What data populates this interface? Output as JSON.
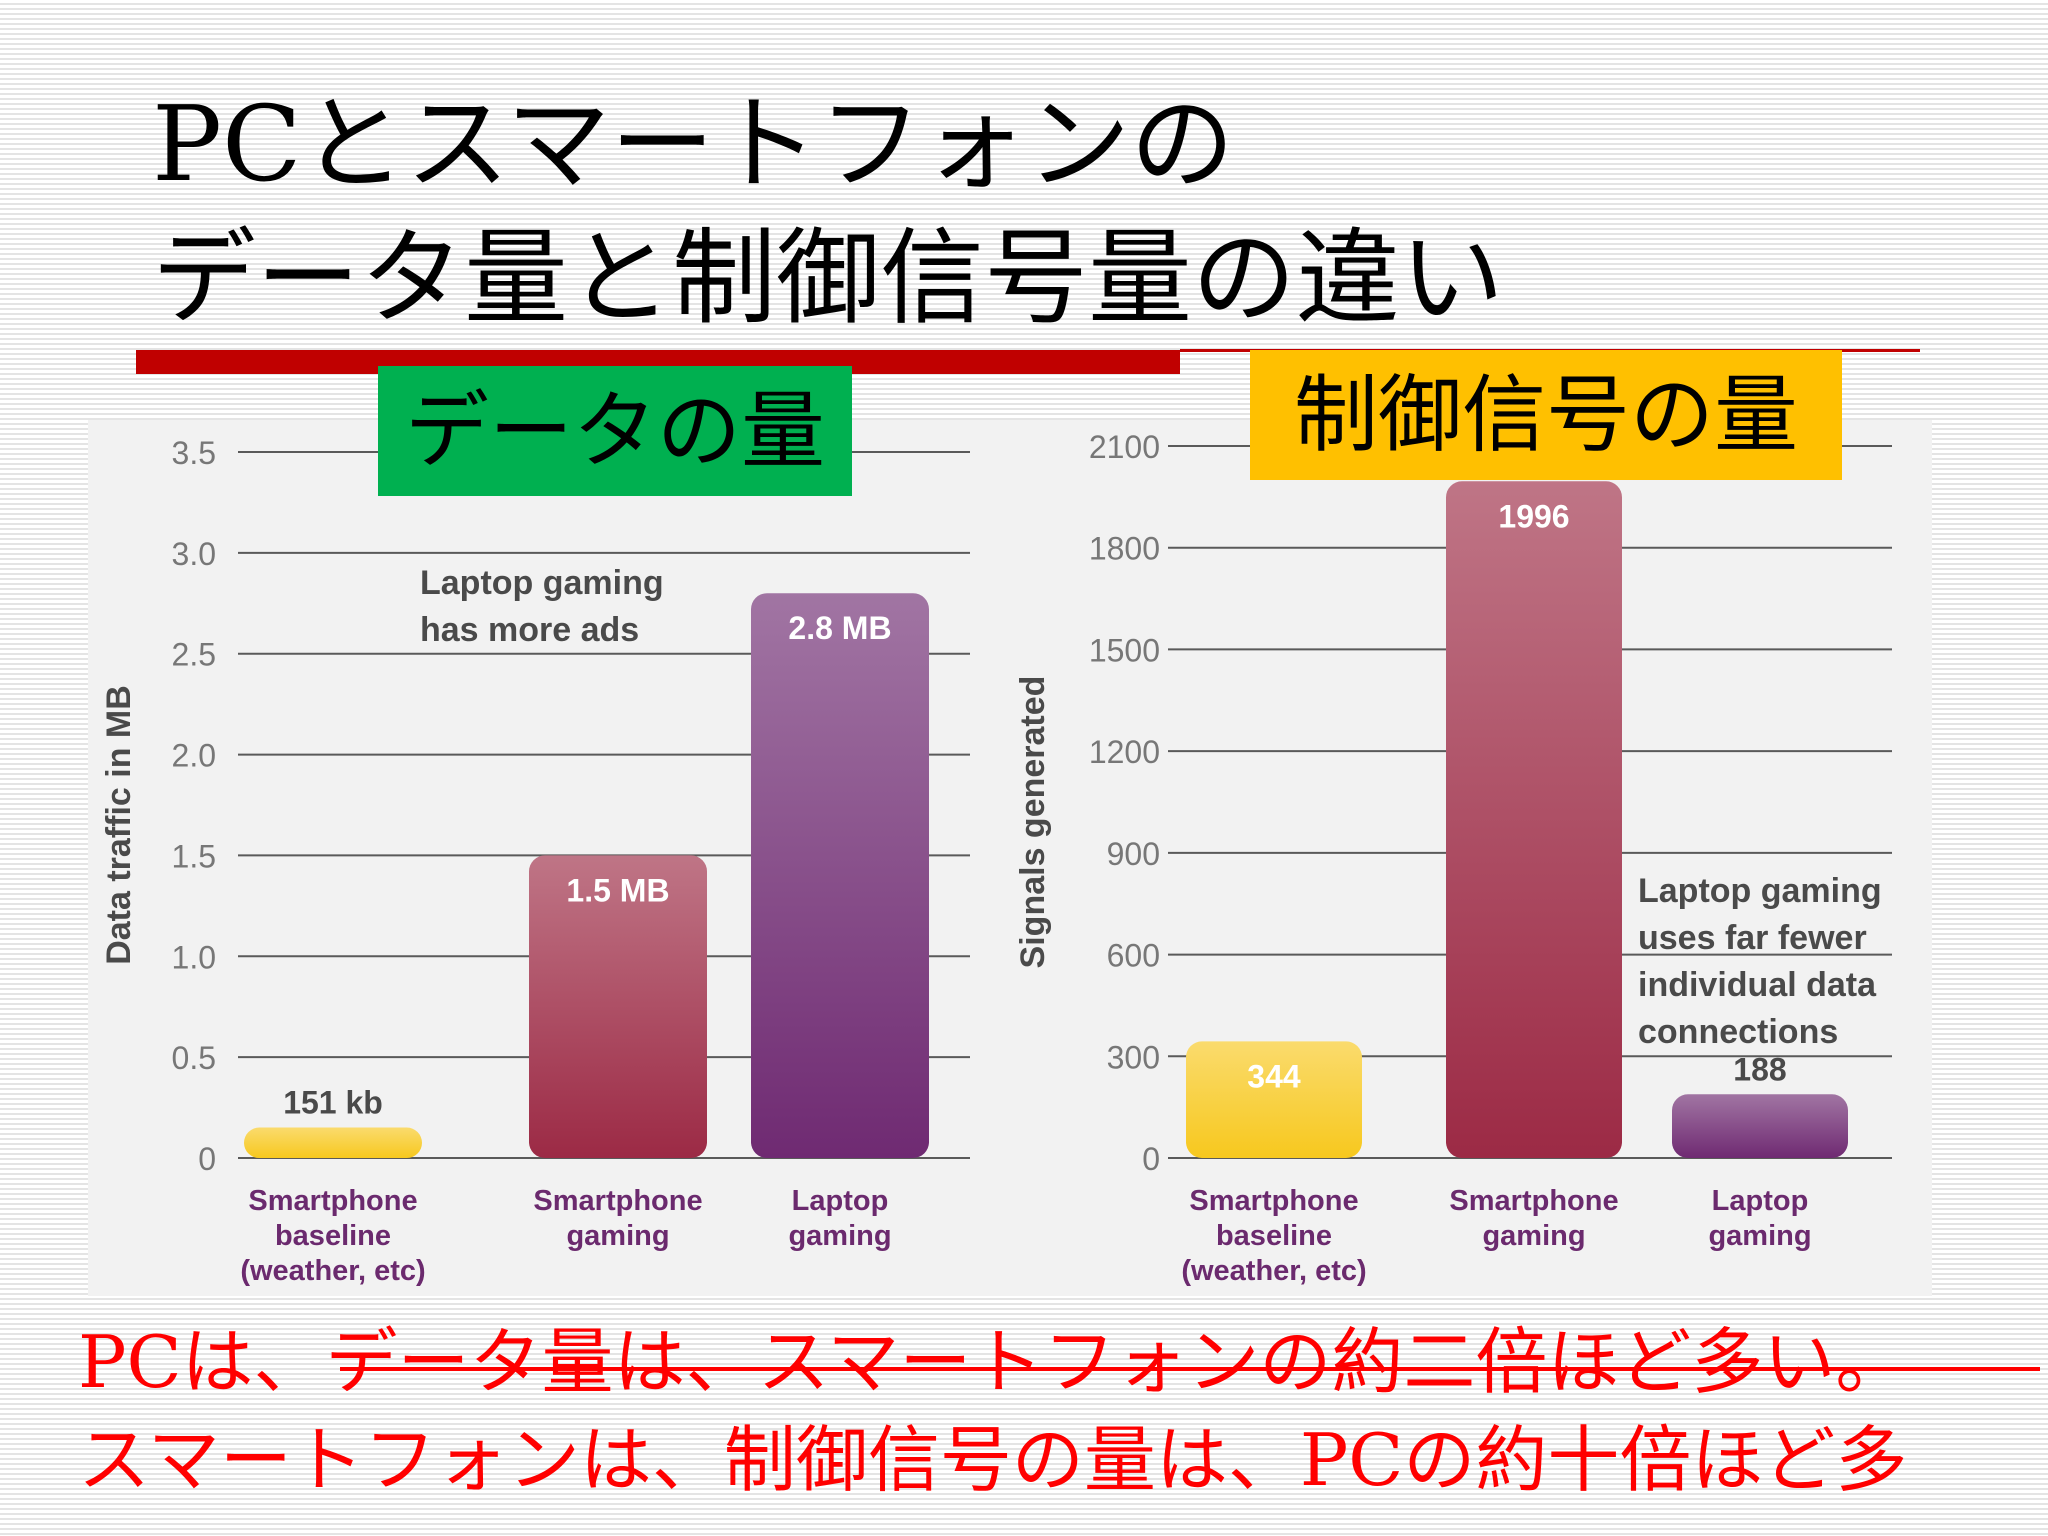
{
  "slide": {
    "title_line_1": "PCとスマートフォンの",
    "title_line_2": "データ量と制御信号量の違い",
    "accent_color": "#c00000",
    "label_data_amount": "データの量",
    "label_data_amount_color": "#00b050",
    "label_control_signal": "制御信号の量",
    "label_control_signal_color": "#ffc000",
    "footer_line_1": "PCは、データ量は、スマートフォンの約二倍ほど多い。",
    "footer_line_2": "スマートフォンは、制御信号の量は、PCの約十倍ほど多",
    "footer_color": "#ff0000"
  },
  "chart_data": [
    {
      "type": "bar",
      "title": "",
      "ylabel": "Data traffic in MB",
      "xlabel": "",
      "ylim": [
        0,
        3.5
      ],
      "yticks": [
        0,
        0.5,
        1.0,
        1.5,
        2.0,
        2.5,
        3.0,
        3.5
      ],
      "ytick_labels": [
        "0",
        "0.5",
        "1.0",
        "1.5",
        "2.0",
        "2.5",
        "3.0",
        "3.5"
      ],
      "grid": true,
      "categories": [
        "Smartphone baseline (weather, etc)",
        "Smartphone gaming",
        "Laptop gaming"
      ],
      "category_lines": [
        [
          "Smartphone",
          "baseline",
          "(weather, etc)"
        ],
        [
          "Smartphone",
          "gaming"
        ],
        [
          "Laptop",
          "gaming"
        ]
      ],
      "values": [
        0.151,
        1.5,
        2.8
      ],
      "data_labels": [
        "151 kb",
        "1.5 MB",
        "2.8 MB"
      ],
      "colors": [
        "#f7c81e",
        "#9c2a45",
        "#6f2a72"
      ],
      "annotation": [
        "Laptop gaming",
        "has more ads"
      ]
    },
    {
      "type": "bar",
      "title": "",
      "ylabel": "Signals generated",
      "xlabel": "",
      "ylim": [
        0,
        2100
      ],
      "yticks": [
        0,
        300,
        600,
        900,
        1200,
        1500,
        1800,
        2100
      ],
      "ytick_labels": [
        "0",
        "300",
        "600",
        "900",
        "1200",
        "1500",
        "1800",
        "2100"
      ],
      "grid": true,
      "categories": [
        "Smartphone baseline (weather, etc)",
        "Smartphone gaming",
        "Laptop gaming"
      ],
      "category_lines": [
        [
          "Smartphone",
          "baseline",
          "(weather, etc)"
        ],
        [
          "Smartphone",
          "gaming"
        ],
        [
          "Laptop",
          "gaming"
        ]
      ],
      "values": [
        344,
        1996,
        188
      ],
      "data_labels": [
        "344",
        "1996",
        "188"
      ],
      "colors": [
        "#f7c81e",
        "#9c2a45",
        "#6f2a72"
      ],
      "annotation": [
        "Laptop gaming",
        "uses far fewer",
        "individual data",
        "connections"
      ]
    }
  ]
}
